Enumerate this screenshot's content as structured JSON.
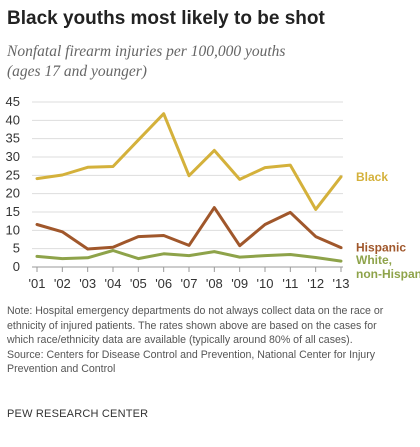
{
  "header": {
    "title": "Black youths most likely to be shot",
    "subtitle_lines": [
      "Nonfatal firearm injuries per 100,000 youths",
      "(ages 17 and younger)"
    ]
  },
  "chart_data": {
    "type": "line",
    "x": [
      "'01",
      "'02",
      "'03",
      "'04",
      "'05",
      "'06",
      "'07",
      "'08",
      "'09",
      "'10",
      "'11",
      "'12",
      "'13"
    ],
    "yticks": [
      0,
      5,
      10,
      15,
      20,
      25,
      30,
      35,
      40,
      45
    ],
    "ylim": [
      0,
      45
    ],
    "grid": true,
    "legend": "labels at line ends (right)",
    "series": [
      {
        "name": "Black",
        "label_lines": [
          "Black"
        ],
        "color": "#d4b13b",
        "values": [
          24.1,
          25.1,
          27.2,
          27.4,
          34.6,
          41.8,
          24.9,
          31.8,
          23.9,
          27.1,
          27.8,
          15.7,
          24.6
        ]
      },
      {
        "name": "Hispanic",
        "label_lines": [
          "Hispanic"
        ],
        "color": "#a0572b",
        "values": [
          11.6,
          9.6,
          4.9,
          5.4,
          8.3,
          8.6,
          5.9,
          16.2,
          5.8,
          11.6,
          14.9,
          8.3,
          5.3
        ]
      },
      {
        "name": "White, non-Hispanic",
        "label_lines": [
          "White,",
          "non-Hispanic"
        ],
        "color": "#8ea34a",
        "values": [
          2.9,
          2.3,
          2.5,
          4.5,
          2.3,
          3.6,
          3.1,
          4.2,
          2.7,
          3.1,
          3.4,
          2.6,
          1.6
        ]
      }
    ]
  },
  "note": {
    "lines": [
      "Note: Hospital emergency departments do not always collect data on the race or",
      "ethnicity of injured patients. The rates shown above are based on the cases for",
      "which race/ethnicity data are available (typically around 80% of all cases).",
      "Source: Centers for Disease Control and Prevention, National Center for Injury",
      "Prevention and Control"
    ]
  },
  "footer": {
    "org": "PEW RESEARCH CENTER"
  },
  "colors": {
    "grid": "#dddddd",
    "axis": "#999999",
    "tick_text": "#333333"
  }
}
